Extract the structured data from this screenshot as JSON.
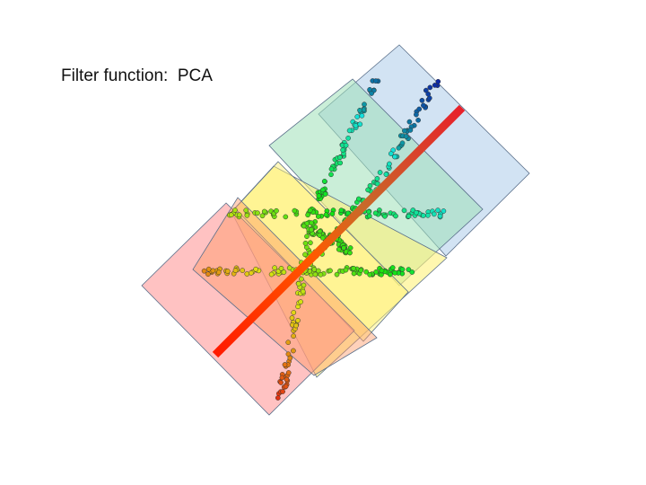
{
  "header": {
    "title": "Filter function:  PCA"
  }
}
